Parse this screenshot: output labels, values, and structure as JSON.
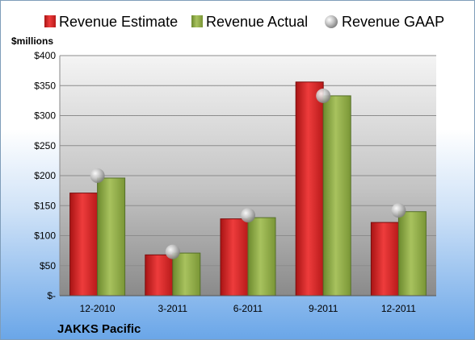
{
  "company": "JAKKS Pacific",
  "chart_data": {
    "type": "bar",
    "y_unit_label": "$millions",
    "categories": [
      "12-2010",
      "3-2011",
      "6-2011",
      "9-2011",
      "12-2011"
    ],
    "series": [
      {
        "name": "Revenue Estimate",
        "kind": "bar",
        "color": "#d42a2a",
        "values": [
          171,
          68,
          128,
          356,
          122
        ]
      },
      {
        "name": "Revenue Actual",
        "kind": "bar",
        "color": "#8fab4a",
        "values": [
          196,
          71,
          130,
          333,
          140
        ]
      },
      {
        "name": "Revenue GAAP",
        "kind": "marker",
        "color": "#b8b8b8",
        "values": [
          200,
          73,
          134,
          333,
          142
        ]
      }
    ],
    "ylim": [
      0,
      400
    ],
    "y_ticks": [
      "$-",
      "$50",
      "$100",
      "$150",
      "$200",
      "$250",
      "$300",
      "$350",
      "$400"
    ],
    "grid": true,
    "legend_position": "top"
  }
}
